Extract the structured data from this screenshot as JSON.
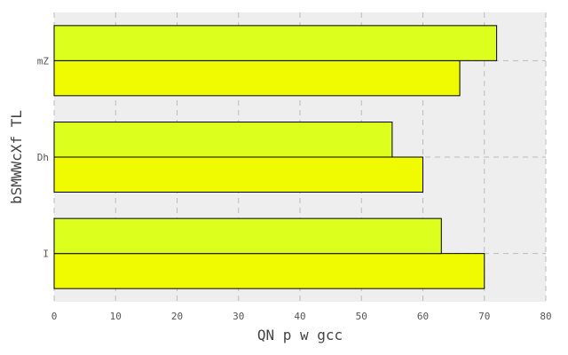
{
  "chart_data": {
    "type": "bar",
    "orientation": "horizontal",
    "title": "",
    "xlabel": "QN p w gcc",
    "ylabel": "bSMWWcXf TL",
    "categories": [
      "I",
      "Dh",
      "mZ"
    ],
    "series": [
      {
        "color": "#f0fa00",
        "values": [
          70,
          60,
          66
        ]
      },
      {
        "color": "#dcff1e",
        "values": [
          63,
          55,
          72
        ]
      }
    ],
    "xlim": [
      0,
      80
    ],
    "xticks": [
      0,
      10,
      20,
      30,
      40,
      50,
      60,
      70,
      80
    ],
    "grid": true,
    "legend": "none",
    "background_color": "#eeeeee",
    "grid_color": "#bbbbbb"
  }
}
